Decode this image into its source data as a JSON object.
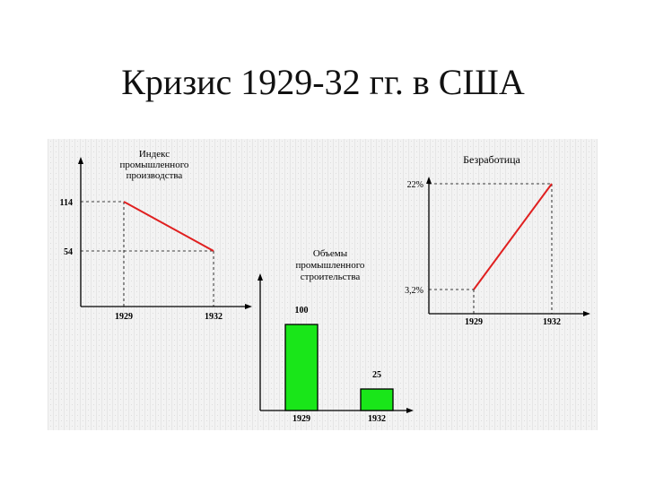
{
  "slide": {
    "title": "Кризис 1929-32 гг. в США"
  },
  "colors": {
    "line": "#e02020",
    "bar": "#19e619",
    "axis": "#000000",
    "panel_bg": "#efefef"
  },
  "chart_data": [
    {
      "type": "line",
      "title": "Индекс промышленного производства",
      "title_lines": [
        "Индекс",
        "промышленного",
        "производства"
      ],
      "x": [
        "1929",
        "1932"
      ],
      "values": [
        114,
        54
      ],
      "y_tick_labels": [
        "114",
        "54"
      ],
      "xlabel": "",
      "ylabel": ""
    },
    {
      "type": "bar",
      "title": "Объемы промышленного строительства",
      "title_lines": [
        "Объемы",
        "промышленного",
        "строительства"
      ],
      "categories": [
        "1929",
        "1932"
      ],
      "values": [
        100,
        25
      ],
      "value_labels": [
        "100",
        "25"
      ],
      "xlabel": "",
      "ylabel": ""
    },
    {
      "type": "line",
      "title": "Безработица",
      "title_lines": [
        "Безработица"
      ],
      "x": [
        "1929",
        "1932"
      ],
      "values": [
        3.2,
        22
      ],
      "y_tick_labels": [
        "3,2%",
        "22%"
      ],
      "xlabel": "",
      "ylabel": ""
    }
  ]
}
